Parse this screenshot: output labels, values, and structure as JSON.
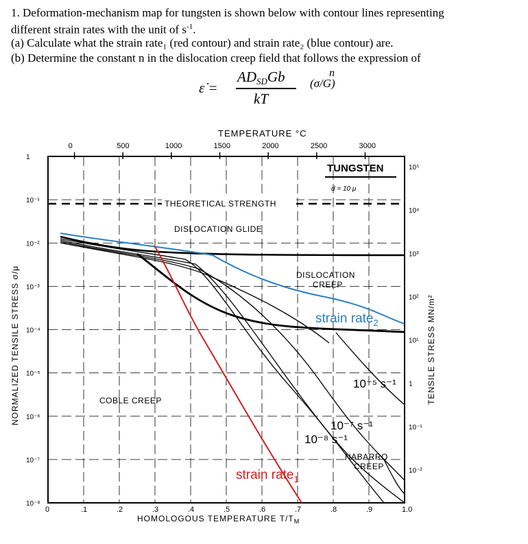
{
  "question": {
    "line1": "1. Deformation-mechanism map for tungsten is shown below with contour lines representing",
    "line2a": "different strain rates with the unit of s",
    "line2sup": "-1",
    "line2b": ".",
    "line3": "(a) Calculate what the strain rate₁ (red contour) and strain rate₂ (blue contour) are.",
    "line4": "(b) Determine the constant n in the dislocation creep field that follows the expression of"
  },
  "equation": {
    "lhs": "ε̇ =",
    "numerator": "AD",
    "numerator_sub": "SD",
    "numerator_tail": "Gb",
    "denominator": "kT",
    "fraction": "(σ/G)",
    "exponent": "n"
  },
  "map": {
    "top_axis_title": "TEMPERATURE °C",
    "top_ticks": [
      "0",
      "500",
      "1000",
      "1500",
      "2000",
      "2500",
      "3000"
    ],
    "bottom_axis_title": "HOMOLOGOUS  TEMPERATURE  T/T",
    "bottom_axis_title_sub": "M",
    "bottom_ticks": [
      "0",
      ".1",
      ".2",
      ".3",
      ".4",
      ".5",
      ".6",
      ".7",
      ".8",
      ".9",
      "1.0"
    ],
    "left_axis_title": "NORMALIZED  TENSILE  STRESS  σ/μ",
    "left_ticks": [
      "1",
      "10⁻¹",
      "10⁻²",
      "10⁻³",
      "10⁻⁴",
      "10⁻⁵",
      "10⁻⁶",
      "10⁻⁷",
      "10⁻⁸"
    ],
    "right_axis_title": "TENSILE  STRESS  MN/m²",
    "right_ticks": [
      "10⁵",
      "10⁴",
      "10³",
      "10²",
      "10¹",
      "1",
      "10⁻¹",
      "10⁻²"
    ],
    "material": "TUNGSTEN",
    "grain_size": "d = 10 μ",
    "region_labels": {
      "theoretical": "THEORETICAL  STRENGTH",
      "glide": "DISLOCATION  GLIDE",
      "creep_line1": "DISLOCATION",
      "creep_line2": "CREEP",
      "coble": "COBLE  CREEP",
      "nabarro_line1": "NABARRO",
      "nabarro_line2": "CREEP"
    },
    "contour_labels": {
      "strain_rate_2": "strain rate",
      "strain_rate_2_sub": "2",
      "strain_rate_1": "strain rate",
      "strain_rate_1_sub": "1",
      "rate_1e-5": "10⁻⁵ s⁻¹",
      "rate_1e-7": "10⁻⁷ s⁻¹",
      "rate_1e-8": "10⁻⁸ s⁻¹"
    },
    "colors": {
      "red_contour": "#d42020",
      "blue_contour": "#2a7fc4"
    }
  }
}
